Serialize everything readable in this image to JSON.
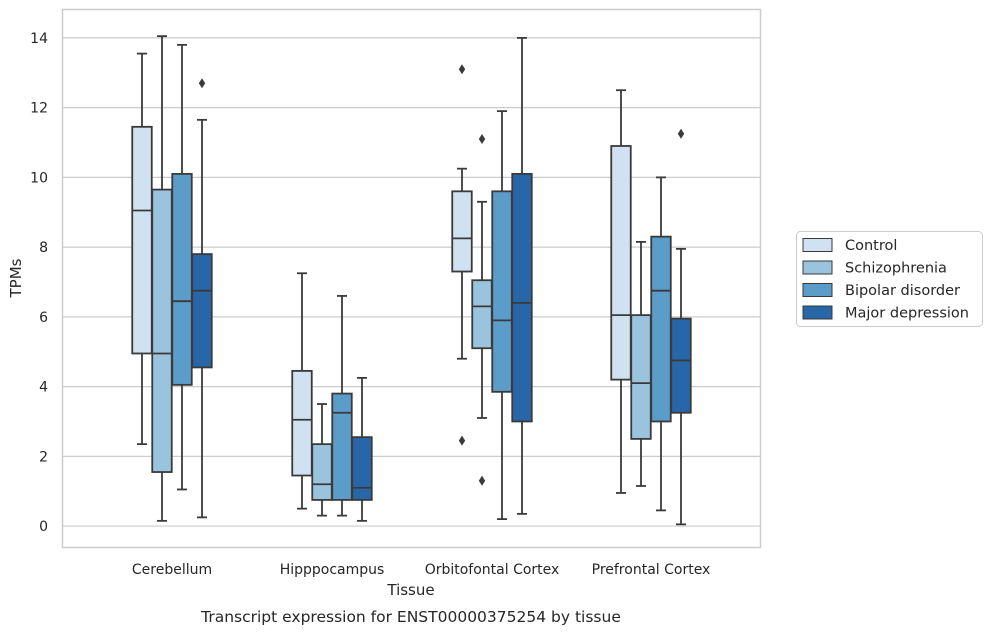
{
  "chart_data": {
    "type": "box",
    "title": "",
    "caption": "Transcript expression for ENST00000375254 by tissue",
    "xlabel": "Tissue",
    "ylabel": "TPMs",
    "ylim": [
      -0.6,
      14.8
    ],
    "yticks": [
      0,
      2,
      4,
      6,
      8,
      10,
      12,
      14
    ],
    "grid": true,
    "legend_position": "right",
    "categories": [
      "Cerebellum",
      "Hipppocampus",
      "Orbitofontal Cortex",
      "Prefrontal Cortex"
    ],
    "series": [
      {
        "name": "Control",
        "color": "#d0e2f2",
        "boxes": [
          {
            "min": 2.35,
            "q1": 4.95,
            "median": 9.05,
            "q3": 11.45,
            "max": 13.55,
            "outliers": []
          },
          {
            "min": 0.5,
            "q1": 1.45,
            "median": 3.05,
            "q3": 4.45,
            "max": 7.25,
            "outliers": []
          },
          {
            "min": 4.8,
            "q1": 7.3,
            "median": 8.25,
            "q3": 9.6,
            "max": 10.25,
            "outliers": [
              13.1,
              2.45
            ]
          },
          {
            "min": 0.95,
            "q1": 4.2,
            "median": 6.05,
            "q3": 10.9,
            "max": 12.5,
            "outliers": []
          }
        ]
      },
      {
        "name": "Schizophrenia",
        "color": "#9ac4dd",
        "boxes": [
          {
            "min": 0.15,
            "q1": 1.55,
            "median": 4.95,
            "q3": 9.65,
            "max": 14.05,
            "outliers": []
          },
          {
            "min": 0.3,
            "q1": 0.75,
            "median": 1.2,
            "q3": 2.35,
            "max": 3.5,
            "outliers": []
          },
          {
            "min": 3.1,
            "q1": 5.1,
            "median": 6.3,
            "q3": 7.05,
            "max": 9.3,
            "outliers": [
              11.1,
              1.3
            ]
          },
          {
            "min": 1.15,
            "q1": 2.5,
            "median": 4.1,
            "q3": 6.05,
            "max": 8.15,
            "outliers": []
          }
        ]
      },
      {
        "name": "Bipolar disorder",
        "color": "#5b9cc9",
        "boxes": [
          {
            "min": 1.05,
            "q1": 4.05,
            "median": 6.45,
            "q3": 10.1,
            "max": 13.8,
            "outliers": []
          },
          {
            "min": 0.3,
            "q1": 0.75,
            "median": 3.25,
            "q3": 3.8,
            "max": 6.6,
            "outliers": []
          },
          {
            "min": 0.2,
            "q1": 3.85,
            "median": 5.9,
            "q3": 9.6,
            "max": 11.9,
            "outliers": []
          },
          {
            "min": 0.45,
            "q1": 3.0,
            "median": 6.75,
            "q3": 8.3,
            "max": 10.0,
            "outliers": []
          }
        ]
      },
      {
        "name": "Major depression",
        "color": "#2767a8",
        "boxes": [
          {
            "min": 0.25,
            "q1": 4.55,
            "median": 6.75,
            "q3": 7.8,
            "max": 11.65,
            "outliers": [
              12.7
            ]
          },
          {
            "min": 0.15,
            "q1": 0.75,
            "median": 1.1,
            "q3": 2.55,
            "max": 4.25,
            "outliers": []
          },
          {
            "min": 0.35,
            "q1": 3.0,
            "median": 6.4,
            "q3": 10.1,
            "max": 14.0,
            "outliers": []
          },
          {
            "min": 0.05,
            "q1": 3.25,
            "median": 4.75,
            "q3": 5.95,
            "max": 7.95,
            "outliers": [
              11.25
            ]
          }
        ]
      }
    ]
  }
}
